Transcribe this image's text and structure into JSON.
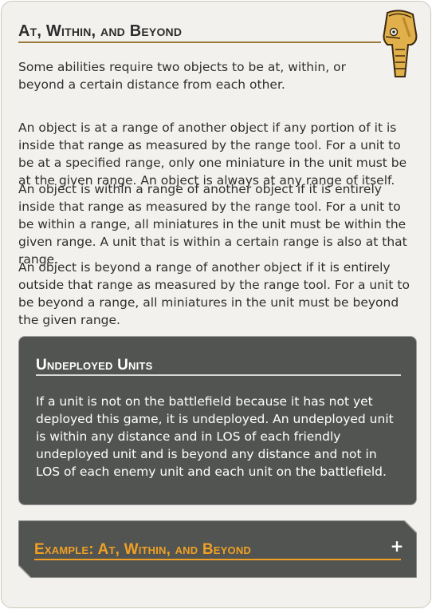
{
  "section": {
    "title": "At, Within, and Beyond",
    "icon": "battle-droid-icon",
    "paragraphs": [
      "Some abilities require two objects to be at, within, or beyond a certain distance from each other.",
      "An object is at a range of another object if any portion of it is inside that range as measured by the range tool. For a unit to be at a specified range, only one miniature in the unit must be at the given range. An object is always at any range of itself.",
      "An object is within a range of another object if it is entirely inside that range as measured by the range tool. For a unit to be within a range, all miniatures in the unit must be within the given range. A unit that is within a certain range is also at that range.",
      "An object is beyond a range of another object if it is entirely outside that range as measured by the range tool. For a unit to be beyond a range, all miniatures in the unit must be beyond the given range."
    ]
  },
  "sidebar": {
    "title": "Undeployed Units",
    "text": "If a unit is not on the battlefield because it has not yet deployed this game, it is undeployed. An undeployed unit is within any distance and in LOS of each friendly undeployed unit and is beyond any distance and not in LOS of each enemy unit and each unit on the battlefield."
  },
  "example": {
    "title": "Example: At, Within, and Beyond",
    "expand_glyph": "+"
  },
  "colors": {
    "accent_gold": "#9a7a3b",
    "example_orange": "#f0a023",
    "panel_gray": "#525452"
  }
}
